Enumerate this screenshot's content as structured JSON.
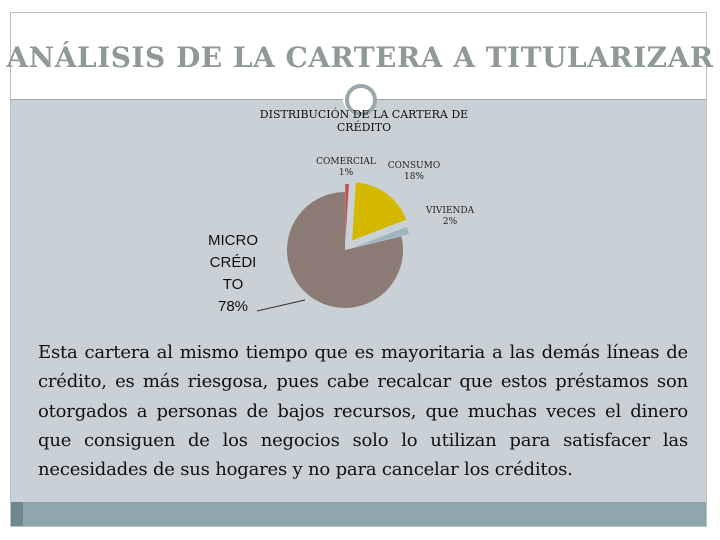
{
  "slide": {
    "title": "ANÁLISIS DE LA CARTERA  A TITULARIZAR",
    "body": "Esta cartera  al mismo tiempo que es mayoritaria a las demás líneas de crédito, es más riesgosa, pues cabe recalcar que estos préstamos son otorgados a personas de bajos recursos, que muchas veces  el dinero que consiguen de los negocios solo lo utilizan para satisfacer las necesidades de sus hogares y  no para cancelar los créditos."
  },
  "colors": {
    "content_bg": "#c9d1d6",
    "footer": "#8fa6ad",
    "title_text": "#8f9a97"
  },
  "chart_data": {
    "type": "pie",
    "title": "DISTRIBUCIÓN DE LA CARTERA DE CRÉDITO",
    "slices": [
      {
        "name": "COMERCIAL",
        "value": 1,
        "label": "1%",
        "color": "#c0504d"
      },
      {
        "name": "CONSUMO",
        "value": 18,
        "label": "18%",
        "color": "#d4b800"
      },
      {
        "name": "VIVIENDA",
        "value": 2,
        "label": "2%",
        "color": "#9fb5bd"
      },
      {
        "name": "MICRO CRÉDI TO",
        "value": 78,
        "label": "78%",
        "color": "#8c7b74"
      }
    ],
    "legend": "none"
  }
}
